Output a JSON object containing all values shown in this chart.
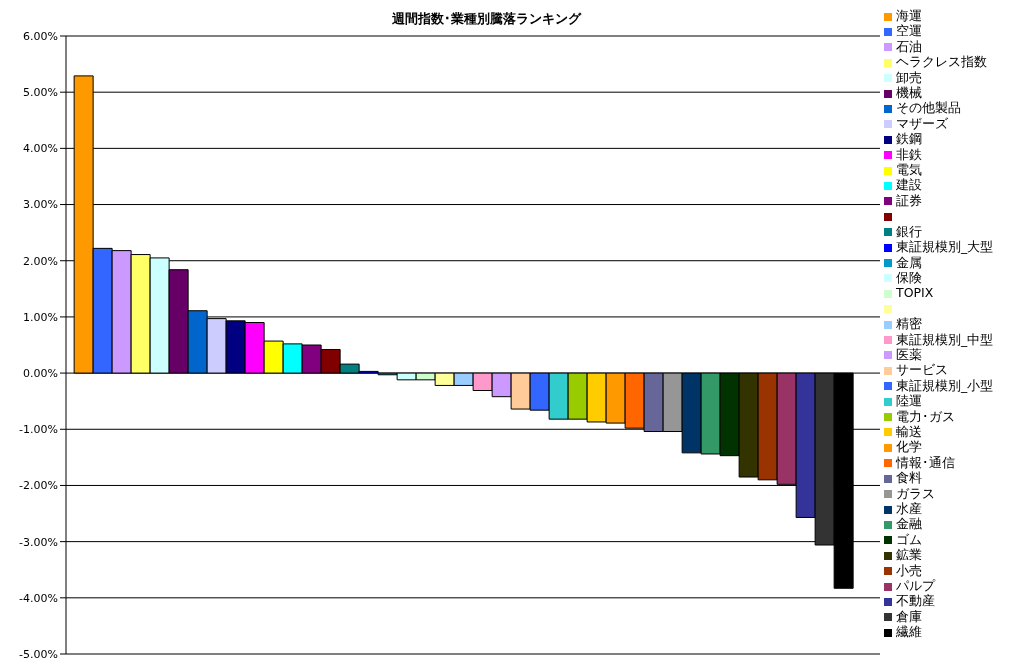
{
  "chart_data": {
    "type": "bar",
    "title": "週間指数･業種別騰落ランキング",
    "categories": [
      null
    ],
    "series": [
      {
        "name": "海運",
        "color": "#ff9900",
        "values": [
          5.29
        ]
      },
      {
        "name": "空運",
        "color": "#3366ff",
        "values": [
          2.22
        ]
      },
      {
        "name": "石油",
        "color": "#cc99ff",
        "values": [
          2.18
        ]
      },
      {
        "name": "ヘラクレス指数",
        "color": "#ffff66",
        "values": [
          2.11
        ]
      },
      {
        "name": "卸売",
        "color": "#ccffff",
        "values": [
          2.05
        ]
      },
      {
        "name": "機械",
        "color": "#660066",
        "values": [
          1.84
        ]
      },
      {
        "name": "その他製品",
        "color": "#0066cc",
        "values": [
          1.11
        ]
      },
      {
        "name": "マザーズ",
        "color": "#ccccff",
        "values": [
          0.97
        ]
      },
      {
        "name": "鉄鋼",
        "color": "#000080",
        "values": [
          0.93
        ]
      },
      {
        "name": "非鉄",
        "color": "#ff00ff",
        "values": [
          0.9
        ]
      },
      {
        "name": "電気",
        "color": "#ffff00",
        "values": [
          0.57
        ]
      },
      {
        "name": "建設",
        "color": "#00ffff",
        "values": [
          0.52
        ]
      },
      {
        "name": "証券",
        "color": "#800080",
        "values": [
          0.5
        ]
      },
      {
        "color": "#800000",
        "values": [
          0.42
        ]
      },
      {
        "name": "銀行",
        "color": "#008080",
        "values": [
          0.16
        ]
      },
      {
        "name": "東証規模別_大型",
        "color": "#0000ff",
        "values": [
          0.03
        ]
      },
      {
        "name": "金属",
        "color": "#0099cc",
        "values": [
          -0.03
        ]
      },
      {
        "name": "保険",
        "color": "#ccffff",
        "values": [
          -0.12
        ]
      },
      {
        "name": "TOPIX",
        "color": "#ccffcc",
        "values": [
          -0.12
        ]
      },
      {
        "color": "#ffff99",
        "values": [
          -0.22
        ]
      },
      {
        "name": "精密",
        "color": "#99ccff",
        "values": [
          -0.22
        ]
      },
      {
        "name": "東証規模別_中型",
        "color": "#ff99cc",
        "values": [
          -0.31
        ]
      },
      {
        "name": "医薬",
        "color": "#cc99ff",
        "values": [
          -0.42
        ]
      },
      {
        "name": "サービス",
        "color": "#ffcc99",
        "values": [
          -0.64
        ]
      },
      {
        "name": "東証規模別_小型",
        "color": "#3366ff",
        "values": [
          -0.66
        ]
      },
      {
        "name": "陸運",
        "color": "#33cccc",
        "values": [
          -0.82
        ]
      },
      {
        "name": "電力･ガス",
        "color": "#99cc00",
        "values": [
          -0.82
        ]
      },
      {
        "name": "輸送",
        "color": "#ffcc00",
        "values": [
          -0.87
        ]
      },
      {
        "name": "化学",
        "color": "#ff9900",
        "values": [
          -0.89
        ]
      },
      {
        "name": "情報･通信",
        "color": "#ff6600",
        "values": [
          -0.98
        ]
      },
      {
        "name": "食料",
        "color": "#666699",
        "values": [
          -1.04
        ]
      },
      {
        "name": "ガラス",
        "color": "#969696",
        "values": [
          -1.04
        ]
      },
      {
        "name": "水産",
        "color": "#003366",
        "values": [
          -1.42
        ]
      },
      {
        "name": "金融",
        "color": "#339966",
        "values": [
          -1.44
        ]
      },
      {
        "name": "ゴム",
        "color": "#003300",
        "values": [
          -1.47
        ]
      },
      {
        "name": "鉱業",
        "color": "#333300",
        "values": [
          -1.85
        ]
      },
      {
        "name": "小売",
        "color": "#993300",
        "values": [
          -1.9
        ]
      },
      {
        "name": "パルプ",
        "color": "#993366",
        "values": [
          -1.98
        ]
      },
      {
        "name": "不動産",
        "color": "#333399",
        "values": [
          -2.57
        ]
      },
      {
        "name": "倉庫",
        "color": "#333333",
        "values": [
          -3.06
        ]
      },
      {
        "name": "繊維",
        "color": "#000000",
        "values": [
          -3.83
        ]
      }
    ],
    "ylim": [
      -5,
      6
    ],
    "yticks": [
      {
        "value": -5,
        "label": "-5.00%"
      },
      {
        "value": -4,
        "label": "-4.00%"
      },
      {
        "value": -3,
        "label": "-3.00%"
      },
      {
        "value": -2,
        "label": "-2.00%"
      },
      {
        "value": -1,
        "label": "-1.00%"
      },
      {
        "value": 0,
        "label": "0.00%"
      },
      {
        "value": 1,
        "label": "1.00%"
      },
      {
        "value": 2,
        "label": "2.00%"
      },
      {
        "value": 3,
        "label": "3.00%"
      },
      {
        "value": 4,
        "label": "4.00%"
      },
      {
        "value": 5,
        "label": "5.00%"
      },
      {
        "value": 6,
        "label": "6.00%"
      }
    ],
    "grid": "y",
    "legend": "right",
    "tick_labels": "y"
  }
}
